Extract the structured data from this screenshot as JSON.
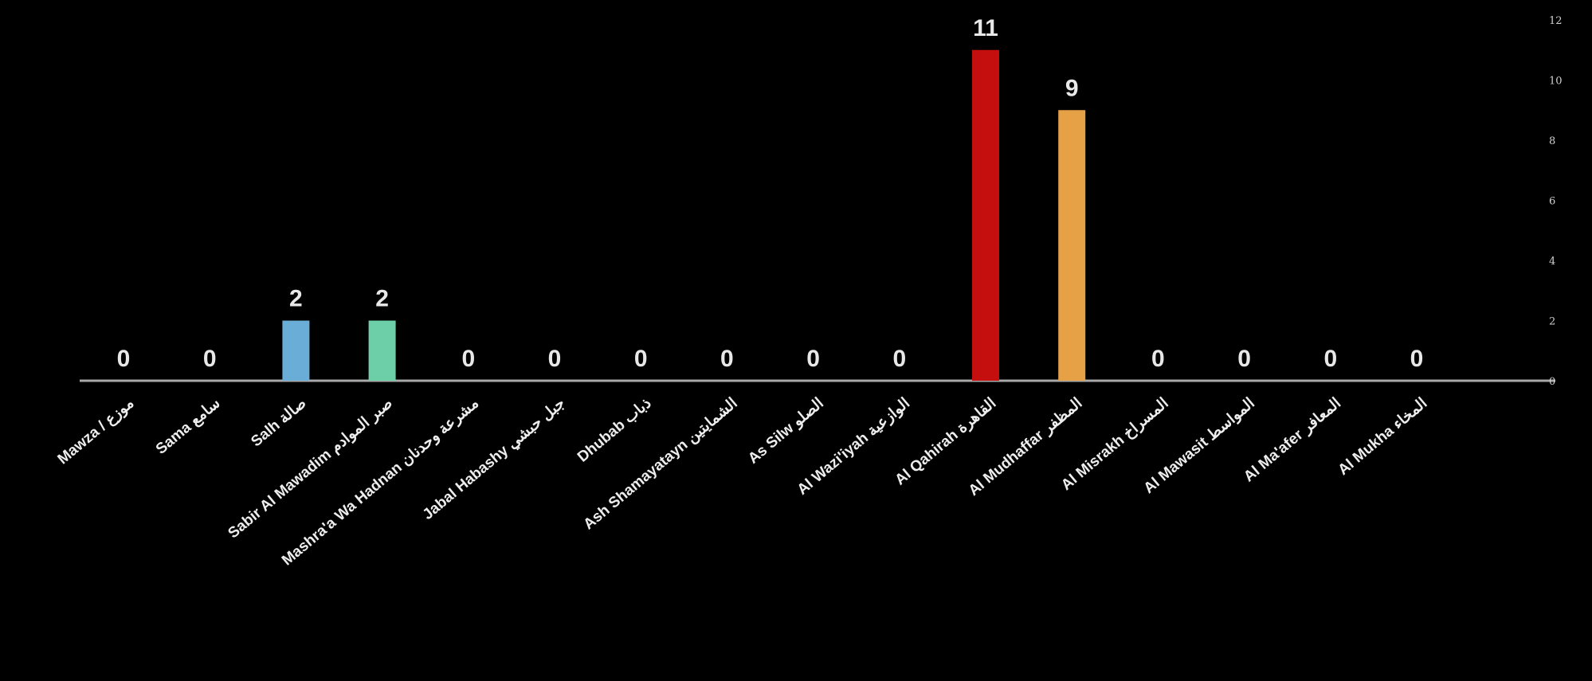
{
  "chart_data": {
    "type": "bar",
    "categories": [
      "Mawza / موزع",
      "Sama سامع",
      "Salh صالة",
      "Sabir Al Mawadim صبر الموادم",
      "Mashra'a Wa Hadnan مشرعة وحدنان",
      "Jabal Habashy جبل حبشي",
      "Dhubab ذباب",
      "Ash Shamayatayn الشمايتين",
      "As Silw الصلو",
      "Al Wazi'iyah الوازعية",
      "Al Qahirah القاهرة",
      "Al Mudhaffar المظفر",
      "Al Misrakh المسراخ",
      "Al Mawasit المواسط",
      "Al Ma'afer المعافر",
      "Al  Mukha المخاء"
    ],
    "values": [
      0,
      0,
      2,
      2,
      0,
      0,
      0,
      0,
      0,
      0,
      11,
      9,
      0,
      0,
      0,
      0
    ],
    "bar_colors": [
      "#9a9a9a",
      "#9a9a9a",
      "#6aaed8",
      "#6dcfa8",
      "#9a9a9a",
      "#9a9a9a",
      "#9a9a9a",
      "#9a9a9a",
      "#9a9a9a",
      "#9a9a9a",
      "#c50f0f",
      "#e6a046",
      "#9a9a9a",
      "#9a9a9a",
      "#9a9a9a",
      "#9a9a9a"
    ],
    "data_labels": [
      "0",
      "0",
      "2",
      "2",
      "0",
      "0",
      "0",
      "0",
      "0",
      "0",
      "11",
      "9",
      "0",
      "0",
      "0",
      "0"
    ],
    "y_ticks": [
      "0",
      "2",
      "4",
      "6",
      "8",
      "10",
      "12"
    ],
    "ylim": [
      0,
      12
    ],
    "axis_position": "right",
    "grid": false,
    "legend": "none",
    "title": "",
    "xlabel": "",
    "ylabel": "",
    "colors": {
      "background": "#000000",
      "baseline": "#a9a9a9",
      "text": "#e8e8e8"
    }
  }
}
